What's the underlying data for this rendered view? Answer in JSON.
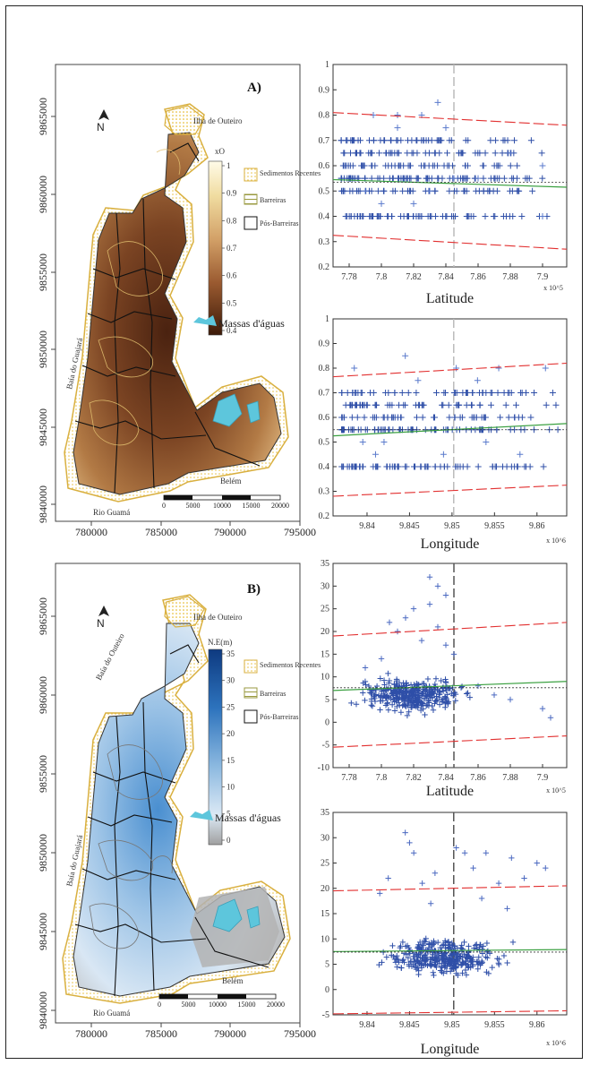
{
  "panel_a": {
    "label": "A)",
    "x_ticks": [
      "780000",
      "785000",
      "790000",
      "795000"
    ],
    "y_ticks": [
      "9865000",
      "9860000",
      "9855000",
      "9850000",
      "9845000",
      "9840000"
    ],
    "place_labels": [
      "Ilha de Outeiro",
      "Baía do Guajará",
      "Rio Guamá",
      "Belém"
    ],
    "colorbar_title": "xO",
    "colorbar_ticks": [
      "1",
      "0.9",
      "0.8",
      "0.7",
      "0.6",
      "0.5",
      "0.4"
    ],
    "legend": [
      "Sedimentos Recentes",
      "Barreiras",
      "Pós-Barreiras"
    ],
    "water_label": "Massas d'águas",
    "scalebar": [
      "0",
      "5000",
      "10000",
      "15000",
      "20000"
    ],
    "north": "N"
  },
  "panel_b": {
    "label": "B)",
    "x_ticks": [
      "780000",
      "785000",
      "790000",
      "795000"
    ],
    "y_ticks": [
      "9865000",
      "9860000",
      "9855000",
      "9850000",
      "9845000",
      "9840000"
    ],
    "place_labels": [
      "Ilha de Outeiro",
      "Baía do Outeiro",
      "Baía do Guajará",
      "Rio Guamá",
      "Belém"
    ],
    "colorbar_title": "N.E(m)",
    "colorbar_ticks": [
      "35",
      "30",
      "25",
      "20",
      "15",
      "10",
      "5",
      "0"
    ],
    "legend": [
      "Sedimentos Recentes",
      "Barreiras",
      "Pós-Barreiras"
    ],
    "water_label": "Massas d'águas",
    "scalebar": [
      "0",
      "5000",
      "10000",
      "15000",
      "20000"
    ],
    "north": "N"
  },
  "chart_data": [
    {
      "type": "scatter",
      "panel": "A",
      "xlabel": "Latitude",
      "x_exponent": "x 10^5",
      "x_tick_labels": [
        "7.78",
        "7.8",
        "7.82",
        "7.84",
        "7.86",
        "7.88",
        "7.9"
      ],
      "x_ticks": [
        7.78,
        7.8,
        7.82,
        7.84,
        7.86,
        7.88,
        7.9
      ],
      "xlim": [
        7.77,
        7.915
      ],
      "ylim": [
        0.2,
        1.0
      ],
      "y_ticks": [
        0.2,
        0.3,
        0.4,
        0.5,
        0.6,
        0.7,
        0.8,
        0.9,
        1.0
      ],
      "y_tick_labels": [
        "0.2",
        "0.3",
        "0.4",
        "0.5",
        "0.6",
        "0.7",
        "0.8",
        "0.9",
        "1"
      ],
      "levels": [
        0.4,
        0.5,
        0.55,
        0.6,
        0.65,
        0.7
      ],
      "outliers": [
        [
          7.795,
          0.8
        ],
        [
          7.81,
          0.8
        ],
        [
          7.825,
          0.8
        ],
        [
          7.835,
          0.85
        ],
        [
          7.8,
          0.45
        ],
        [
          7.82,
          0.45
        ],
        [
          7.86,
          0.55
        ],
        [
          7.9,
          0.4
        ],
        [
          7.88,
          0.65
        ],
        [
          7.9,
          0.6
        ],
        [
          7.84,
          0.75
        ],
        [
          7.81,
          0.75
        ],
        [
          7.845,
          0.55
        ],
        [
          7.79,
          0.5
        ],
        [
          7.83,
          0.5
        ]
      ],
      "x_range_data": [
        7.775,
        7.905
      ],
      "mean_line": [
        [
          7.77,
          0.545
        ],
        [
          7.915,
          0.515
        ]
      ],
      "upper_line": [
        [
          7.77,
          0.81
        ],
        [
          7.915,
          0.76
        ]
      ],
      "lower_line": [
        [
          7.77,
          0.325
        ],
        [
          7.915,
          0.27
        ]
      ],
      "reference_line": 0.535,
      "vertical_marker": 7.845
    },
    {
      "type": "scatter",
      "panel": "A",
      "xlabel": "Longitude",
      "x_exponent": "x 10^6",
      "x_tick_labels": [
        "9.84",
        "9.845",
        "9.85",
        "9.855",
        "9.86"
      ],
      "x_ticks": [
        9.84,
        9.845,
        9.85,
        9.855,
        9.86
      ],
      "xlim": [
        9.836,
        9.8635
      ],
      "ylim": [
        0.2,
        1.0
      ],
      "y_ticks": [
        0.2,
        0.3,
        0.4,
        0.5,
        0.6,
        0.7,
        0.8,
        0.9,
        1.0
      ],
      "y_tick_labels": [
        "0.2",
        "0.3",
        "0.4",
        "0.5",
        "0.6",
        "0.7",
        "0.8",
        "0.9",
        "1"
      ],
      "levels": [
        0.4,
        0.55,
        0.6,
        0.65,
        0.7
      ],
      "outliers": [
        [
          9.8385,
          0.8
        ],
        [
          9.8445,
          0.85
        ],
        [
          9.8505,
          0.8
        ],
        [
          9.8555,
          0.8
        ],
        [
          9.861,
          0.8
        ],
        [
          9.841,
          0.45
        ],
        [
          9.849,
          0.45
        ],
        [
          9.854,
          0.5
        ],
        [
          9.858,
          0.45
        ],
        [
          9.842,
          0.5
        ],
        [
          9.853,
          0.75
        ],
        [
          9.846,
          0.75
        ],
        [
          9.8395,
          0.5
        ]
      ],
      "x_range_data": [
        9.837,
        9.8625
      ],
      "mean_line": [
        [
          9.836,
          0.525
        ],
        [
          9.8635,
          0.575
        ]
      ],
      "upper_line": [
        [
          9.836,
          0.765
        ],
        [
          9.8635,
          0.82
        ]
      ],
      "lower_line": [
        [
          9.836,
          0.28
        ],
        [
          9.8635,
          0.325
        ]
      ],
      "reference_line": 0.55,
      "vertical_marker": 9.8502
    },
    {
      "type": "scatter",
      "panel": "B",
      "xlabel": "Latitude",
      "x_exponent": "x 10^5",
      "x_tick_labels": [
        "7.78",
        "7.8",
        "7.82",
        "7.84",
        "7.86",
        "7.88",
        "7.9"
      ],
      "x_ticks": [
        7.78,
        7.8,
        7.82,
        7.84,
        7.86,
        7.88,
        7.9
      ],
      "xlim": [
        7.77,
        7.915
      ],
      "ylim": [
        -10,
        35
      ],
      "y_ticks": [
        -10,
        -5,
        0,
        5,
        10,
        15,
        20,
        25,
        30,
        35
      ],
      "y_tick_labels": [
        "-10",
        "-5",
        "0",
        "5",
        "10",
        "15",
        "20",
        "25",
        "30",
        "35"
      ],
      "scatter_center": [
        7.82,
        6.0
      ],
      "scatter_spread": [
        0.035,
        3.5
      ],
      "high_points": [
        [
          7.83,
          32
        ],
        [
          7.835,
          30
        ],
        [
          7.84,
          28
        ],
        [
          7.82,
          25
        ],
        [
          7.805,
          22
        ],
        [
          7.81,
          20
        ],
        [
          7.825,
          18
        ],
        [
          7.84,
          17
        ],
        [
          7.845,
          15
        ],
        [
          7.8,
          14
        ],
        [
          7.845,
          35
        ],
        [
          7.83,
          26
        ],
        [
          7.815,
          23
        ],
        [
          7.835,
          21
        ],
        [
          7.79,
          12
        ],
        [
          7.88,
          5
        ],
        [
          7.9,
          3
        ],
        [
          7.905,
          1
        ],
        [
          7.86,
          8
        ],
        [
          7.87,
          6
        ]
      ],
      "mean_line": [
        [
          7.77,
          7.0
        ],
        [
          7.915,
          9.0
        ]
      ],
      "upper_line": [
        [
          7.77,
          19.0
        ],
        [
          7.915,
          22.0
        ]
      ],
      "lower_line": [
        [
          7.77,
          -5.5
        ],
        [
          7.915,
          -3.0
        ]
      ],
      "reference_line": 7.6,
      "vertical_marker": 7.845
    },
    {
      "type": "scatter",
      "panel": "B",
      "xlabel": "Longitude",
      "x_exponent": "x 10^6",
      "x_tick_labels": [
        "9.84",
        "9.845",
        "9.85",
        "9.855",
        "9.86"
      ],
      "x_ticks": [
        9.84,
        9.845,
        9.85,
        9.855,
        9.86
      ],
      "xlim": [
        9.836,
        9.8635
      ],
      "ylim": [
        -5,
        35
      ],
      "y_ticks": [
        -5,
        0,
        5,
        10,
        15,
        20,
        25,
        30,
        35
      ],
      "y_tick_labels": [
        "-5",
        "0",
        "5",
        "10",
        "15",
        "20",
        "25",
        "30",
        "35"
      ],
      "scatter_center": [
        9.849,
        6.5
      ],
      "scatter_spread": [
        0.007,
        3.5
      ],
      "high_points": [
        [
          9.8445,
          31
        ],
        [
          9.845,
          29
        ],
        [
          9.8455,
          27
        ],
        [
          9.8505,
          28
        ],
        [
          9.8515,
          27
        ],
        [
          9.854,
          27
        ],
        [
          9.857,
          26
        ],
        [
          9.86,
          25
        ],
        [
          9.861,
          24
        ],
        [
          9.848,
          23
        ],
        [
          9.8425,
          22
        ],
        [
          9.8465,
          21
        ],
        [
          9.8525,
          24
        ],
        [
          9.8555,
          21
        ],
        [
          9.8585,
          22
        ],
        [
          9.8485,
          35
        ],
        [
          9.8415,
          19
        ],
        [
          9.8535,
          18
        ],
        [
          9.8475,
          17
        ],
        [
          9.8565,
          16
        ]
      ],
      "mean_line": [
        [
          9.836,
          7.5
        ],
        [
          9.8635,
          7.9
        ]
      ],
      "upper_line": [
        [
          9.836,
          19.5
        ],
        [
          9.8635,
          20.5
        ]
      ],
      "lower_line": [
        [
          9.836,
          -4.8
        ],
        [
          9.8635,
          -4.2
        ]
      ],
      "reference_line": 7.4,
      "vertical_marker": 9.8502
    }
  ]
}
